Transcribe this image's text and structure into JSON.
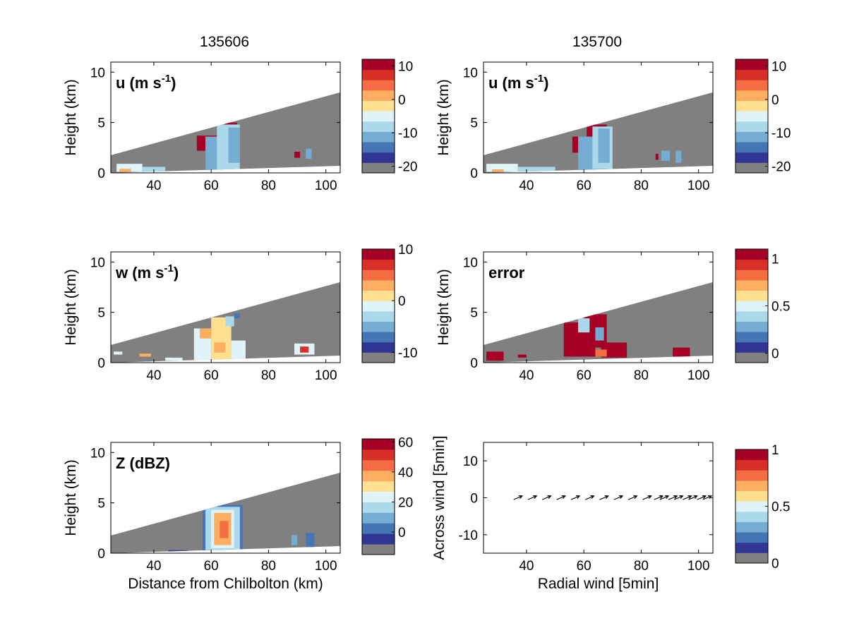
{
  "colors": {
    "missing": "#808080",
    "cbar": [
      "#808080",
      "#313695",
      "#4575b4",
      "#74add1",
      "#abd9e9",
      "#e0f3f8",
      "#fee090",
      "#fdae61",
      "#f46d43",
      "#d73027",
      "#a50026"
    ]
  },
  "column_titles": [
    "135606",
    "135700"
  ],
  "chart_data": [
    {
      "type": "heatmap",
      "panel": "u_left",
      "label": "u (m s-1)",
      "label_parts": {
        "main": "u (m s",
        "exp": "-1",
        "close": ")"
      },
      "ylabel": "Height (km)",
      "xlabel": "",
      "xlim": [
        25,
        105
      ],
      "ylim": [
        0,
        11
      ],
      "xticks": [
        40,
        60,
        80,
        100
      ],
      "yticks": [
        0,
        5,
        10
      ],
      "scan_top": {
        "x": [
          25,
          105
        ],
        "y": [
          1.75,
          8.0
        ]
      },
      "scan_bottom": {
        "x": [
          25,
          105
        ],
        "y": [
          0.0,
          0.7
        ]
      },
      "cells": [
        {
          "x": [
            55,
            62
          ],
          "y": [
            2.2,
            3.7
          ],
          "v": 9
        },
        {
          "x": [
            63,
            69
          ],
          "y": [
            3.0,
            5.0
          ],
          "v": 10
        },
        {
          "x": [
            58,
            67
          ],
          "y": [
            0.2,
            3.6
          ],
          "v": -10
        },
        {
          "x": [
            62,
            70
          ],
          "y": [
            0.3,
            4.8
          ],
          "v": -8
        },
        {
          "x": [
            66,
            70
          ],
          "y": [
            1.0,
            4.5
          ],
          "v": -12
        },
        {
          "x": [
            89,
            91
          ],
          "y": [
            1.5,
            2.1
          ],
          "v": 10
        },
        {
          "x": [
            93,
            95
          ],
          "y": [
            1.4,
            2.4
          ],
          "v": -12
        },
        {
          "x": [
            27,
            36
          ],
          "y": [
            0.1,
            0.9
          ],
          "v": -6
        },
        {
          "x": [
            36,
            44
          ],
          "y": [
            0.1,
            0.6
          ],
          "v": -8
        },
        {
          "x": [
            28,
            32
          ],
          "y": [
            0.1,
            0.4
          ],
          "v": 2
        }
      ],
      "cbar": {
        "ticks": [
          10,
          0,
          -10,
          -20
        ],
        "range": [
          -22,
          12
        ]
      }
    },
    {
      "type": "heatmap",
      "panel": "u_right",
      "label": "u (m s-1)",
      "label_parts": {
        "main": "u (m s",
        "exp": "-1",
        "close": ")"
      },
      "ylabel": "Height (km)",
      "xlabel": "",
      "xlim": [
        25,
        105
      ],
      "ylim": [
        0,
        11
      ],
      "xticks": [
        40,
        60,
        80,
        100
      ],
      "yticks": [
        0,
        5,
        10
      ],
      "scan_top": {
        "x": [
          25,
          105
        ],
        "y": [
          1.75,
          8.0
        ]
      },
      "scan_bottom": {
        "x": [
          25,
          105
        ],
        "y": [
          0.0,
          0.7
        ]
      },
      "cells": [
        {
          "x": [
            56,
            63
          ],
          "y": [
            2.0,
            3.6
          ],
          "v": 9
        },
        {
          "x": [
            61,
            68
          ],
          "y": [
            3.0,
            4.8
          ],
          "v": 10
        },
        {
          "x": [
            58,
            68
          ],
          "y": [
            0.2,
            3.6
          ],
          "v": -10
        },
        {
          "x": [
            63,
            70
          ],
          "y": [
            0.4,
            4.6
          ],
          "v": -8
        },
        {
          "x": [
            65,
            69
          ],
          "y": [
            1.0,
            4.4
          ],
          "v": -12
        },
        {
          "x": [
            85,
            86
          ],
          "y": [
            1.3,
            1.9
          ],
          "v": 10
        },
        {
          "x": [
            87,
            90
          ],
          "y": [
            1.2,
            2.2
          ],
          "v": -12
        },
        {
          "x": [
            92,
            94
          ],
          "y": [
            1.0,
            2.2
          ],
          "v": -10
        },
        {
          "x": [
            26,
            37
          ],
          "y": [
            0.1,
            0.9
          ],
          "v": -6
        },
        {
          "x": [
            37,
            50
          ],
          "y": [
            0.1,
            0.6
          ],
          "v": -8
        },
        {
          "x": [
            28,
            32
          ],
          "y": [
            0.1,
            0.35
          ],
          "v": 2
        }
      ],
      "cbar": {
        "ticks": [
          10,
          0,
          -10,
          -20
        ],
        "range": [
          -22,
          12
        ]
      }
    },
    {
      "type": "heatmap",
      "panel": "w_left",
      "label": "w (m s-1)",
      "label_parts": {
        "main": "w (m s",
        "exp": "-1",
        "close": ")"
      },
      "ylabel": "Height (km)",
      "xlabel": "",
      "xlim": [
        25,
        105
      ],
      "ylim": [
        0,
        11
      ],
      "xticks": [
        40,
        60,
        80,
        100
      ],
      "yticks": [
        0,
        5,
        10
      ],
      "scan_top": {
        "x": [
          25,
          105
        ],
        "y": [
          1.75,
          8.0
        ]
      },
      "scan_bottom": {
        "x": [
          25,
          105
        ],
        "y": [
          0.0,
          0.7
        ]
      },
      "cells": [
        {
          "x": [
            54,
            60
          ],
          "y": [
            0.2,
            3.4
          ],
          "v": -1
        },
        {
          "x": [
            60,
            67
          ],
          "y": [
            0.2,
            4.5
          ],
          "v": 0
        },
        {
          "x": [
            67,
            72
          ],
          "y": [
            0.3,
            2.2
          ],
          "v": -2
        },
        {
          "x": [
            56,
            60
          ],
          "y": [
            2.4,
            3.4
          ],
          "v": 3
        },
        {
          "x": [
            61,
            65
          ],
          "y": [
            1.0,
            2.0
          ],
          "v": 2
        },
        {
          "x": [
            65,
            68
          ],
          "y": [
            3.6,
            4.6
          ],
          "v": -3
        },
        {
          "x": [
            68,
            70
          ],
          "y": [
            4.4,
            4.9
          ],
          "v": -8
        },
        {
          "x": [
            89,
            96
          ],
          "y": [
            0.8,
            1.9
          ],
          "v": -1
        },
        {
          "x": [
            91,
            94
          ],
          "y": [
            1.0,
            1.6
          ],
          "v": 6
        },
        {
          "x": [
            35,
            39
          ],
          "y": [
            0.6,
            0.9
          ],
          "v": 2
        },
        {
          "x": [
            26,
            29
          ],
          "y": [
            0.8,
            1.1
          ],
          "v": -2
        },
        {
          "x": [
            44,
            50
          ],
          "y": [
            0.2,
            0.5
          ],
          "v": -1
        }
      ],
      "cbar": {
        "ticks": [
          10,
          0,
          -10
        ],
        "range": [
          -12,
          10
        ]
      }
    },
    {
      "type": "heatmap",
      "panel": "error_right",
      "label": "error",
      "ylabel": "Height (km)",
      "xlabel": "",
      "xlim": [
        25,
        105
      ],
      "ylim": [
        0,
        11
      ],
      "xticks": [
        40,
        60,
        80,
        100
      ],
      "yticks": [
        0,
        5,
        10
      ],
      "scan_top": {
        "x": [
          25,
          105
        ],
        "y": [
          1.75,
          8.0
        ]
      },
      "scan_bottom": {
        "x": [
          25,
          105
        ],
        "y": [
          0.0,
          0.7
        ]
      },
      "cells": [
        {
          "x": [
            53,
            64
          ],
          "y": [
            0.6,
            4.0
          ],
          "v": 1.05
        },
        {
          "x": [
            60,
            68
          ],
          "y": [
            1.5,
            4.8
          ],
          "v": 1.05
        },
        {
          "x": [
            66,
            75
          ],
          "y": [
            0.5,
            2.0
          ],
          "v": 1.05
        },
        {
          "x": [
            58,
            62
          ],
          "y": [
            3.0,
            4.4
          ],
          "v": 0.4
        },
        {
          "x": [
            64,
            67
          ],
          "y": [
            2.2,
            3.5
          ],
          "v": 0.3
        },
        {
          "x": [
            64,
            68
          ],
          "y": [
            0.6,
            1.3
          ],
          "v": 0.8
        },
        {
          "x": [
            91,
            97
          ],
          "y": [
            0.6,
            1.5
          ],
          "v": 1.05
        },
        {
          "x": [
            26,
            32
          ],
          "y": [
            0.2,
            1.1
          ],
          "v": 1.05
        },
        {
          "x": [
            37,
            40
          ],
          "y": [
            0.5,
            0.8
          ],
          "v": 1.05
        }
      ],
      "cbar": {
        "ticks": [
          1,
          0.5,
          0
        ],
        "range": [
          -0.1,
          1.1
        ]
      }
    },
    {
      "type": "heatmap",
      "panel": "z_left",
      "label": "Z (dBZ)",
      "ylabel": "Height (km)",
      "xlabel": "Distance from Chilbolton (km)",
      "xlim": [
        25,
        105
      ],
      "ylim": [
        0,
        11
      ],
      "xticks": [
        40,
        60,
        80,
        100
      ],
      "yticks": [
        0,
        5,
        10
      ],
      "scan_top": {
        "x": [
          25,
          105
        ],
        "y": [
          1.75,
          8.0
        ]
      },
      "scan_bottom": {
        "x": [
          25,
          105
        ],
        "y": [
          0.0,
          0.7
        ]
      },
      "cells": [
        {
          "x": [
            57,
            71
          ],
          "y": [
            0.2,
            4.8
          ],
          "v": 5
        },
        {
          "x": [
            58,
            70
          ],
          "y": [
            0.3,
            4.6
          ],
          "v": 15
        },
        {
          "x": [
            60,
            68
          ],
          "y": [
            0.5,
            4.3
          ],
          "v": 25
        },
        {
          "x": [
            61,
            67
          ],
          "y": [
            0.8,
            4.0
          ],
          "v": 35
        },
        {
          "x": [
            63,
            66
          ],
          "y": [
            1.5,
            3.2
          ],
          "v": 42
        },
        {
          "x": [
            88,
            90
          ],
          "y": [
            0.8,
            1.8
          ],
          "v": 8
        },
        {
          "x": [
            93,
            96
          ],
          "y": [
            0.6,
            2.0
          ],
          "v": 3
        },
        {
          "x": [
            27,
            32
          ],
          "y": [
            0.1,
            0.4
          ],
          "v": -10
        },
        {
          "x": [
            45,
            52
          ],
          "y": [
            0.1,
            0.3
          ],
          "v": -8
        }
      ],
      "cbar": {
        "ticks": [
          60,
          40,
          20,
          0
        ],
        "range": [
          -15,
          62
        ]
      }
    },
    {
      "type": "scatter",
      "panel": "wind_right",
      "ylabel": "Across wind [5min]",
      "xlabel": "Radial wind [5min]",
      "xlim": [
        25,
        105
      ],
      "ylim": [
        -15,
        15
      ],
      "xticks": [
        40,
        60,
        80,
        100
      ],
      "yticks": [
        -10,
        0,
        10
      ],
      "arrows": {
        "x": [
          37,
          42,
          47,
          52,
          57,
          62,
          67,
          72,
          77,
          82,
          86,
          88,
          91,
          93,
          96,
          98,
          101,
          103
        ],
        "y": [
          0,
          0,
          0,
          0,
          0,
          0,
          0,
          0,
          0,
          0,
          0,
          0,
          0,
          0,
          0,
          0,
          0,
          0
        ],
        "u": [
          3,
          3,
          3,
          3,
          3,
          3,
          3,
          3,
          3,
          3,
          3,
          3,
          3,
          3,
          3,
          3,
          3,
          3
        ],
        "v": [
          1,
          1,
          1,
          1,
          1,
          1,
          1,
          1,
          1,
          1,
          1,
          1,
          1,
          1,
          1,
          1,
          1,
          1
        ]
      },
      "cbar": {
        "ticks": [
          1,
          0.5,
          0
        ],
        "range": [
          0,
          1
        ]
      }
    }
  ]
}
